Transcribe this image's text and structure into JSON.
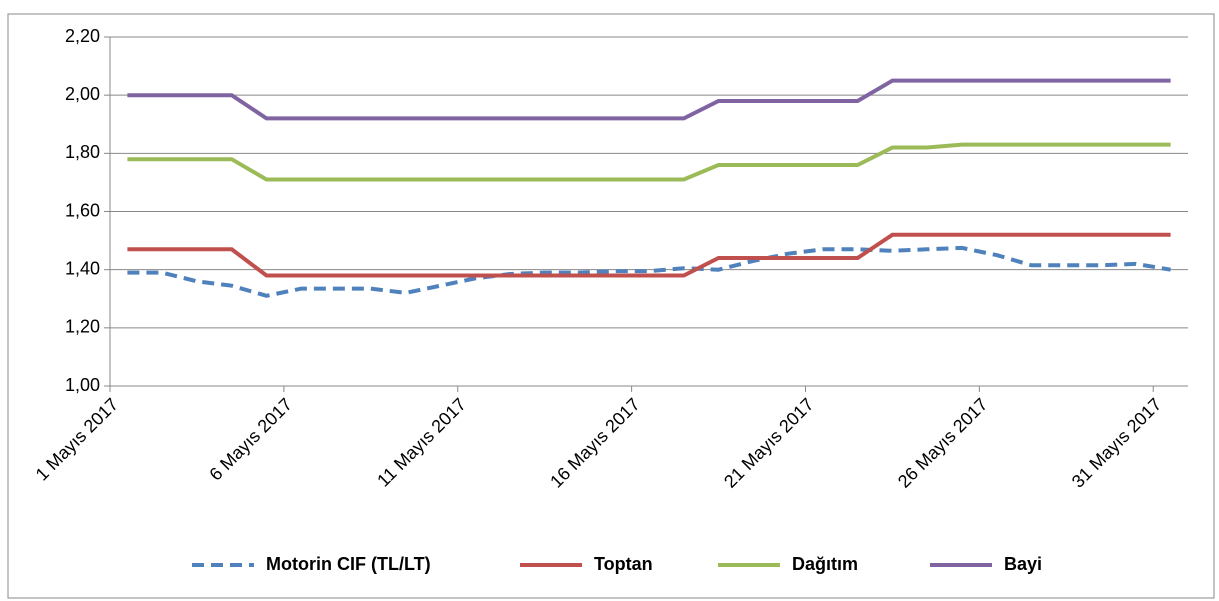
{
  "chart_data": {
    "type": "line",
    "categories": [
      "1 Mayıs 2017",
      null,
      null,
      null,
      null,
      "6 Mayıs 2017",
      null,
      null,
      null,
      null,
      "11 Mayıs 2017",
      null,
      null,
      null,
      null,
      "16 Mayıs 2017",
      null,
      null,
      null,
      null,
      "21 Mayıs 2017",
      null,
      null,
      null,
      null,
      "26 Mayıs 2017",
      null,
      null,
      null,
      null,
      "31 Mayıs 2017"
    ],
    "series": [
      {
        "name": "Motorin CIF (TL/LT)",
        "color": "#4f81bd",
        "dashed": true,
        "values": [
          1.39,
          1.39,
          1.36,
          1.345,
          1.31,
          1.335,
          1.335,
          1.335,
          1.32,
          1.345,
          1.37,
          1.385,
          1.39,
          1.39,
          1.395,
          1.395,
          1.405,
          1.4,
          1.43,
          1.455,
          1.47,
          1.47,
          1.465,
          1.47,
          1.475,
          1.45,
          1.415,
          1.415,
          1.415,
          1.42,
          1.4
        ]
      },
      {
        "name": "Toptan",
        "color": "#c0504d",
        "dashed": false,
        "values": [
          1.47,
          1.47,
          1.47,
          1.47,
          1.38,
          1.38,
          1.38,
          1.38,
          1.38,
          1.38,
          1.38,
          1.38,
          1.38,
          1.38,
          1.38,
          1.38,
          1.38,
          1.44,
          1.44,
          1.44,
          1.44,
          1.44,
          1.52,
          1.52,
          1.52,
          1.52,
          1.52,
          1.52,
          1.52,
          1.52,
          1.52
        ]
      },
      {
        "name": "Dağıtım",
        "color": "#9bbb59",
        "dashed": false,
        "values": [
          1.78,
          1.78,
          1.78,
          1.78,
          1.71,
          1.71,
          1.71,
          1.71,
          1.71,
          1.71,
          1.71,
          1.71,
          1.71,
          1.71,
          1.71,
          1.71,
          1.71,
          1.76,
          1.76,
          1.76,
          1.76,
          1.76,
          1.82,
          1.82,
          1.83,
          1.83,
          1.83,
          1.83,
          1.83,
          1.83,
          1.83
        ]
      },
      {
        "name": "Bayi",
        "color": "#8064a2",
        "dashed": false,
        "values": [
          2.0,
          2.0,
          2.0,
          2.0,
          1.92,
          1.92,
          1.92,
          1.92,
          1.92,
          1.92,
          1.92,
          1.92,
          1.92,
          1.92,
          1.92,
          1.92,
          1.92,
          1.98,
          1.98,
          1.98,
          1.98,
          1.98,
          2.05,
          2.05,
          2.05,
          2.05,
          2.05,
          2.05,
          2.05,
          2.05,
          2.05
        ]
      }
    ],
    "ylim": [
      1.0,
      2.2
    ],
    "yticks": [
      {
        "value": 1.0,
        "label": "1,00"
      },
      {
        "value": 1.2,
        "label": "1,20"
      },
      {
        "value": 1.4,
        "label": "1,40"
      },
      {
        "value": 1.6,
        "label": "1,60"
      },
      {
        "value": 1.8,
        "label": "1,80"
      },
      {
        "value": 2.0,
        "label": "2,00"
      },
      {
        "value": 2.2,
        "label": "2,20"
      }
    ],
    "grid": true,
    "legend": "bottom"
  }
}
